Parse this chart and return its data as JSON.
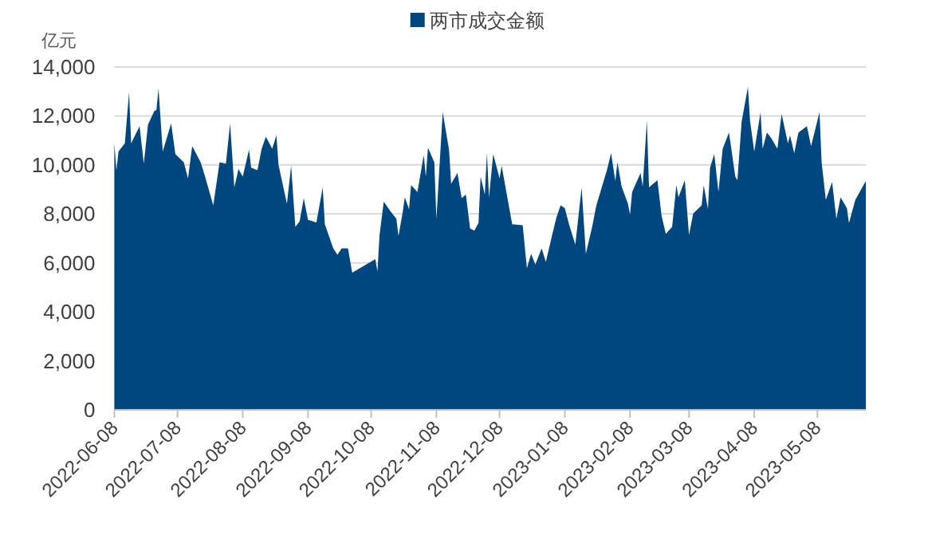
{
  "chart_data": {
    "type": "area",
    "ylabel": "亿元",
    "legend": "top",
    "grid": "y",
    "ylim": [
      0,
      14000
    ],
    "yticks": [
      0,
      {
        "value": 2000,
        "label": "2,000"
      },
      {
        "value": 4000,
        "label": "4,000"
      },
      {
        "value": 6000,
        "label": "6,000"
      },
      {
        "value": 8000,
        "label": "8,000"
      },
      {
        "value": 10000,
        "label": "10,000"
      },
      {
        "value": 12000,
        "label": "12,000"
      },
      {
        "value": 14000,
        "label": "14,000"
      }
    ],
    "xlim": [
      "2022-06-08",
      "2023-05-31"
    ],
    "xticks": [
      "2022-06-08",
      "2022-07-08",
      "2022-08-08",
      "2022-09-08",
      "2022-10-08",
      "2022-11-08",
      "2022-12-08",
      "2023-01-08",
      "2023-02-08",
      "2023-03-08",
      "2023-04-08",
      "2023-05-08"
    ],
    "x": [
      "2022-06-08",
      "2022-06-09",
      "2022-06-10",
      "2022-06-13",
      "2022-06-15",
      "2022-06-16",
      "2022-06-20",
      "2022-06-22",
      "2022-06-24",
      "2022-06-27",
      "2022-06-28",
      "2022-06-29",
      "2022-07-01",
      "2022-07-05",
      "2022-07-07",
      "2022-07-11",
      "2022-07-13",
      "2022-07-15",
      "2022-07-19",
      "2022-07-21",
      "2022-07-25",
      "2022-07-28",
      "2022-07-31",
      "2022-08-02",
      "2022-08-04",
      "2022-08-06",
      "2022-08-08",
      "2022-08-11",
      "2022-08-12",
      "2022-08-15",
      "2022-08-17",
      "2022-08-19",
      "2022-08-22",
      "2022-08-24",
      "2022-08-25",
      "2022-08-29",
      "2022-08-31",
      "2022-09-02",
      "2022-09-04",
      "2022-09-06",
      "2022-09-08",
      "2022-09-12",
      "2022-09-15",
      "2022-09-16",
      "2022-09-20",
      "2022-09-22",
      "2022-09-24",
      "2022-09-27",
      "2022-09-29",
      "2022-10-10",
      "2022-10-11",
      "2022-10-12",
      "2022-10-14",
      "2022-10-17",
      "2022-10-20",
      "2022-10-21",
      "2022-10-23",
      "2022-10-24",
      "2022-10-26",
      "2022-10-27",
      "2022-10-30",
      "2022-11-02",
      "2022-11-03",
      "2022-11-04",
      "2022-11-07",
      "2022-11-08",
      "2022-11-11",
      "2022-11-14",
      "2022-11-15",
      "2022-11-18",
      "2022-11-20",
      "2022-11-22",
      "2022-11-24",
      "2022-11-26",
      "2022-11-28",
      "2022-11-29",
      "2022-12-01",
      "2022-12-02",
      "2022-12-03",
      "2022-12-05",
      "2022-12-08",
      "2022-12-09",
      "2022-12-11",
      "2022-12-14",
      "2022-12-19",
      "2022-12-21",
      "2022-12-23",
      "2022-12-25",
      "2022-12-28",
      "2022-12-30",
      "2023-01-02",
      "2023-01-04",
      "2023-01-06",
      "2023-01-08",
      "2023-01-10",
      "2023-01-13",
      "2023-01-16",
      "2023-01-18",
      "2023-01-21",
      "2023-01-23",
      "2023-01-28",
      "2023-01-30",
      "2023-02-01",
      "2023-02-02",
      "2023-02-04",
      "2023-02-07",
      "2023-02-08",
      "2023-02-09",
      "2023-02-13",
      "2023-02-14",
      "2023-02-16",
      "2023-02-17",
      "2023-02-21",
      "2023-02-23",
      "2023-02-25",
      "2023-02-28",
      "2023-03-02",
      "2023-03-03",
      "2023-03-06",
      "2023-03-08",
      "2023-03-10",
      "2023-03-14",
      "2023-03-15",
      "2023-03-17",
      "2023-03-18",
      "2023-03-20",
      "2023-03-22",
      "2023-03-24",
      "2023-03-27",
      "2023-03-30",
      "2023-03-31",
      "2023-04-02",
      "2023-04-05",
      "2023-04-06",
      "2023-04-08",
      "2023-04-11",
      "2023-04-12",
      "2023-04-14",
      "2023-04-16",
      "2023-04-19",
      "2023-04-21",
      "2023-04-24",
      "2023-04-25",
      "2023-04-27",
      "2023-04-29",
      "2023-05-03",
      "2023-05-05",
      "2023-05-09",
      "2023-05-10",
      "2023-05-12",
      "2023-05-15",
      "2023-05-17",
      "2023-05-19",
      "2023-05-22",
      "2023-05-23",
      "2023-05-26",
      "2023-05-31"
    ],
    "series": [
      {
        "name": "两市成交金额",
        "color": "#00477f",
        "values": [
          10880,
          9780,
          10550,
          10880,
          12970,
          10880,
          11580,
          10050,
          11650,
          12200,
          12240,
          13120,
          10550,
          11700,
          10440,
          10110,
          9450,
          10770,
          10110,
          9560,
          8350,
          10110,
          10050,
          11700,
          9080,
          9830,
          9520,
          10620,
          9890,
          9780,
          10660,
          11150,
          10660,
          11210,
          10000,
          8420,
          9960,
          7470,
          7690,
          8640,
          7760,
          7650,
          9080,
          7580,
          6590,
          6330,
          6590,
          6590,
          5600,
          6150,
          5650,
          7140,
          8500,
          8130,
          7800,
          7100,
          8070,
          8680,
          8200,
          9170,
          8900,
          10400,
          9520,
          10700,
          10110,
          7800,
          12150,
          10620,
          9230,
          9670,
          8640,
          8790,
          7410,
          7320,
          7630,
          9520,
          8790,
          10480,
          8680,
          10440,
          9450,
          9960,
          9010,
          7580,
          7540,
          5780,
          6370,
          5930,
          6590,
          6040,
          7140,
          7850,
          8350,
          8240,
          7580,
          6750,
          9080,
          6370,
          7470,
          8350,
          9780,
          10480,
          9340,
          10110,
          9120,
          8420,
          7980,
          8900,
          9670,
          9120,
          11800,
          9080,
          9380,
          7910,
          7190,
          7470,
          9170,
          8680,
          9380,
          7140,
          8020,
          8350,
          9170,
          8200,
          9890,
          10440,
          8900,
          10660,
          11320,
          9520,
          9380,
          11760,
          13190,
          11800,
          10550,
          12150,
          10660,
          11320,
          11100,
          10660,
          12090,
          10880,
          11210,
          10480,
          11320,
          11580,
          10770,
          12150,
          10110,
          8570,
          9300,
          7800,
          8680,
          8240,
          7630,
          8570,
          9340
        ]
      }
    ]
  }
}
